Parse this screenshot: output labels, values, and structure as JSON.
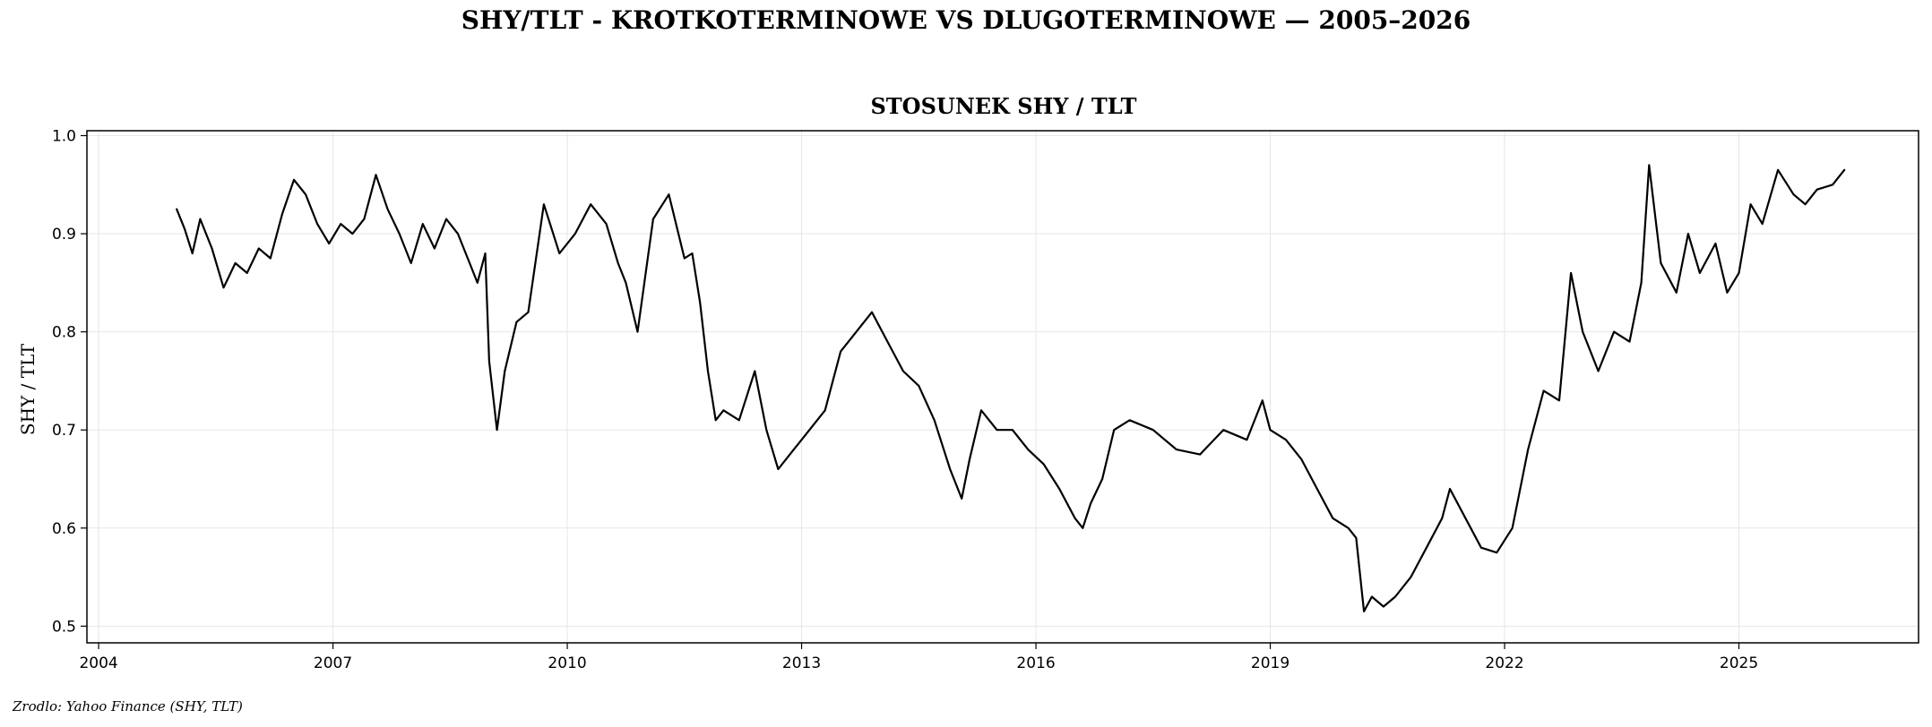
{
  "suptitle": "SHY/TLT - KROTKOTERMINOWE VS DLUGOTERMINOWE — 2005–2026",
  "source": "Zrodlo: Yahoo Finance (SHY, TLT)",
  "colors": {
    "line": "#000000",
    "grid": "#e6e6e6",
    "axis": "#000000"
  },
  "chart_data": {
    "type": "line",
    "title": "STOSUNEK SHY / TLT",
    "xlabel": "",
    "ylabel": "SHY / TLT",
    "grid": true,
    "xlim": [
      2003.85,
      2027.3
    ],
    "ylim": [
      0.483,
      1.005
    ],
    "xticks": [
      2004,
      2007,
      2010,
      2013,
      2016,
      2019,
      2022,
      2025
    ],
    "yticks": [
      0.5,
      0.6,
      0.7,
      0.8,
      0.9,
      1.0
    ],
    "ytick_labels": [
      "0.5",
      "0.6",
      "0.7",
      "0.8",
      "0.9",
      "1.0"
    ],
    "series": [
      {
        "x": [
          2005.0,
          2005.1,
          2005.2,
          2005.3,
          2005.45,
          2005.6,
          2005.75,
          2005.9,
          2006.05,
          2006.2,
          2006.35,
          2006.5,
          2006.65,
          2006.8,
          2006.95,
          2007.1,
          2007.25,
          2007.4,
          2007.55,
          2007.7,
          2007.85,
          2008.0,
          2008.15,
          2008.3,
          2008.45,
          2008.6,
          2008.75,
          2008.85,
          2008.95,
          2009.0,
          2009.1,
          2009.2,
          2009.35,
          2009.5,
          2009.7,
          2009.9,
          2010.1,
          2010.3,
          2010.5,
          2010.65,
          2010.75,
          2010.9,
          2011.1,
          2011.3,
          2011.5,
          2011.6,
          2011.7,
          2011.8,
          2011.9,
          2012.0,
          2012.2,
          2012.4,
          2012.55,
          2012.7,
          2012.9,
          2013.1,
          2013.3,
          2013.5,
          2013.7,
          2013.9,
          2014.1,
          2014.3,
          2014.5,
          2014.7,
          2014.9,
          2015.05,
          2015.15,
          2015.3,
          2015.5,
          2015.7,
          2015.9,
          2016.1,
          2016.3,
          2016.5,
          2016.6,
          2016.7,
          2016.85,
          2017.0,
          2017.2,
          2017.5,
          2017.8,
          2018.1,
          2018.4,
          2018.7,
          2018.9,
          2019.0,
          2019.2,
          2019.4,
          2019.6,
          2019.8,
          2020.0,
          2020.1,
          2020.2,
          2020.3,
          2020.45,
          2020.6,
          2020.8,
          2021.0,
          2021.2,
          2021.3,
          2021.5,
          2021.7,
          2021.9,
          2022.1,
          2022.3,
          2022.5,
          2022.7,
          2022.85,
          2023.0,
          2023.2,
          2023.4,
          2023.6,
          2023.75,
          2023.85,
          2024.0,
          2024.2,
          2024.35,
          2024.5,
          2024.7,
          2024.85,
          2025.0,
          2025.15,
          2025.3,
          2025.5,
          2025.7,
          2025.85,
          2026.0,
          2026.2,
          2026.35
        ],
        "y": [
          0.925,
          0.905,
          0.88,
          0.915,
          0.885,
          0.845,
          0.87,
          0.86,
          0.885,
          0.875,
          0.92,
          0.955,
          0.94,
          0.91,
          0.89,
          0.91,
          0.9,
          0.915,
          0.96,
          0.925,
          0.9,
          0.87,
          0.91,
          0.885,
          0.915,
          0.9,
          0.87,
          0.85,
          0.88,
          0.77,
          0.7,
          0.76,
          0.81,
          0.82,
          0.93,
          0.88,
          0.9,
          0.93,
          0.91,
          0.87,
          0.85,
          0.8,
          0.915,
          0.94,
          0.875,
          0.88,
          0.83,
          0.76,
          0.71,
          0.72,
          0.71,
          0.76,
          0.7,
          0.66,
          0.68,
          0.7,
          0.72,
          0.78,
          0.8,
          0.82,
          0.79,
          0.76,
          0.745,
          0.71,
          0.66,
          0.63,
          0.67,
          0.72,
          0.7,
          0.7,
          0.68,
          0.665,
          0.64,
          0.61,
          0.6,
          0.625,
          0.65,
          0.7,
          0.71,
          0.7,
          0.68,
          0.675,
          0.7,
          0.69,
          0.73,
          0.7,
          0.69,
          0.67,
          0.64,
          0.61,
          0.6,
          0.59,
          0.515,
          0.53,
          0.52,
          0.53,
          0.55,
          0.58,
          0.61,
          0.64,
          0.61,
          0.58,
          0.575,
          0.6,
          0.68,
          0.74,
          0.73,
          0.86,
          0.8,
          0.76,
          0.8,
          0.79,
          0.85,
          0.97,
          0.87,
          0.84,
          0.9,
          0.86,
          0.89,
          0.84,
          0.86,
          0.93,
          0.91,
          0.965,
          0.94,
          0.93,
          0.945,
          0.95,
          0.965
        ]
      }
    ]
  }
}
